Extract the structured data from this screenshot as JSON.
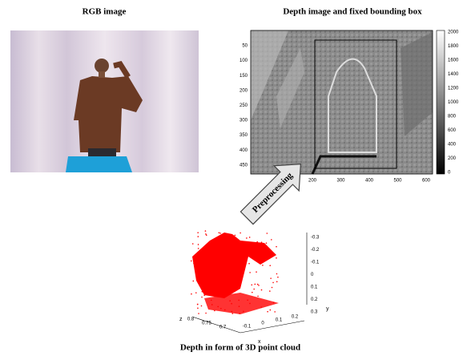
{
  "rgb": {
    "title": "RGB image"
  },
  "depth": {
    "title": "Depth image and fixed bounding box",
    "yticks": [
      "50",
      "100",
      "150",
      "200",
      "250",
      "300",
      "350",
      "400",
      "450"
    ],
    "xticks": [
      "200",
      "300",
      "400",
      "500",
      "600"
    ],
    "colorbar_ticks": [
      "2000",
      "1800",
      "1600",
      "1400",
      "1200",
      "1000",
      "800",
      "600",
      "400",
      "200",
      "0"
    ]
  },
  "arrow": {
    "label": "Preprocessing"
  },
  "cloud": {
    "title": "Depth in form of 3D point cloud",
    "y_label": "y",
    "x_label": "x",
    "z_label": "z",
    "yticks": [
      "-0.3",
      "-0.2",
      "-0.1",
      "0",
      "0.1",
      "0.2",
      "0.3"
    ],
    "xticks": [
      "-0.1",
      "0",
      "0.1",
      "0.2"
    ],
    "zticks": [
      "0.8",
      "0.75",
      "0.7"
    ]
  }
}
